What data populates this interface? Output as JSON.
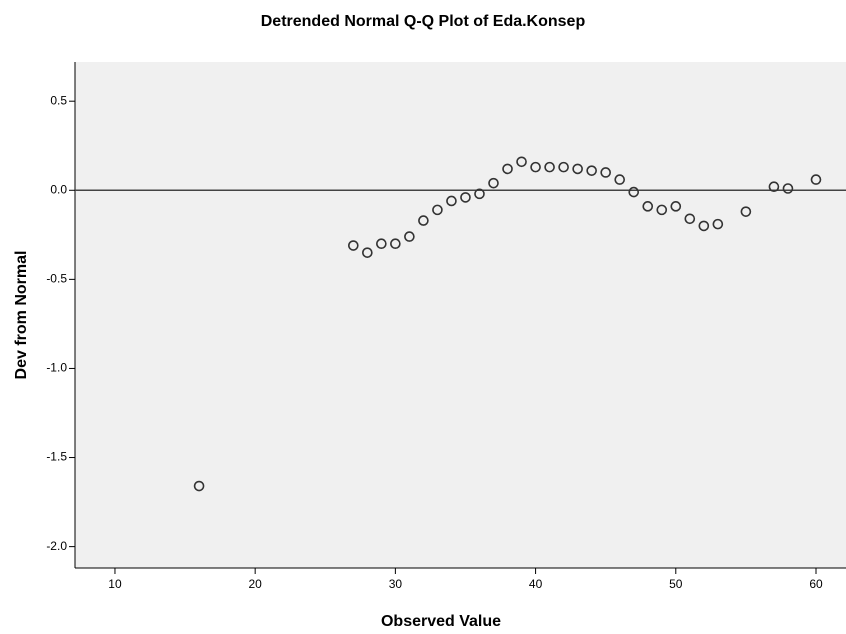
{
  "chart_data": {
    "type": "scatter",
    "title": "Detrended Normal Q-Q Plot of Eda.Konsep",
    "x_label": "Observed Value",
    "y_label": "Dev from Normal",
    "x": [
      16,
      27,
      28,
      29,
      30,
      31,
      32,
      33,
      34,
      35,
      36,
      37,
      38,
      39,
      40,
      41,
      42,
      43,
      44,
      45,
      46,
      47,
      48,
      49,
      50,
      51,
      52,
      53,
      55,
      57,
      58,
      60
    ],
    "values": [
      -1.66,
      -0.31,
      -0.35,
      -0.3,
      -0.3,
      -0.26,
      -0.17,
      -0.11,
      -0.06,
      -0.04,
      -0.02,
      0.04,
      0.12,
      0.16,
      0.13,
      0.13,
      0.13,
      0.12,
      0.11,
      0.1,
      0.06,
      -0.01,
      -0.09,
      -0.11,
      -0.09,
      -0.16,
      -0.2,
      -0.19,
      -0.12,
      0.02,
      0.01,
      0.06
    ],
    "color": "#333333",
    "reference_line": 0,
    "xlim": [
      7.15,
      62.14
    ],
    "ylim": [
      -2.12,
      0.72
    ],
    "xticks": [
      10,
      20,
      30,
      40,
      50,
      60
    ],
    "yticks": [
      0.5,
      {
        "value": 0,
        "label": "0.0"
      },
      -0.5,
      {
        "value": -1,
        "label": "-1.0"
      },
      -1.5,
      {
        "value": -2,
        "label": "-2.0"
      }
    ]
  }
}
